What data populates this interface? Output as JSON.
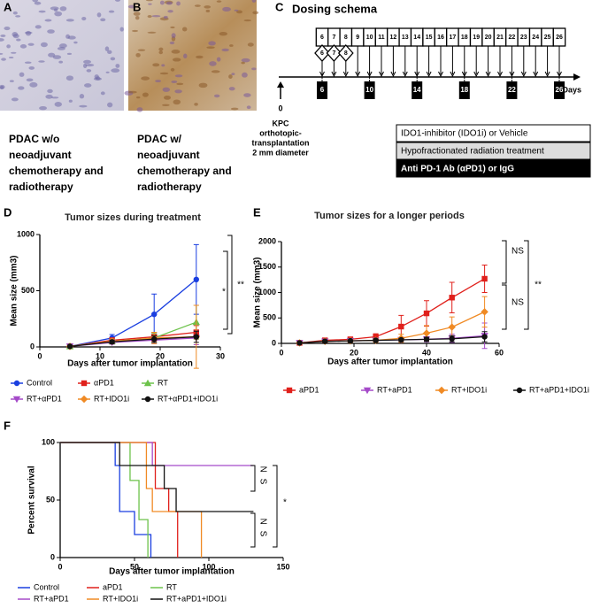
{
  "panels": {
    "a": {
      "letter": "A",
      "caption": [
        "PDAC w/o",
        "neoadjuvant",
        "chemotherapy  and",
        "radiotherapy"
      ]
    },
    "b": {
      "letter": "B",
      "caption": [
        "PDAC w/",
        "neoadjuvant",
        "chemotherapy and",
        "radiotherapy"
      ]
    },
    "c": {
      "letter": "C",
      "title": "Dosing schema",
      "days": [
        "6",
        "7",
        "8",
        "9",
        "10",
        "11",
        "12",
        "13",
        "14",
        "15",
        "16",
        "17",
        "18",
        "19",
        "20",
        "21",
        "22",
        "23",
        "24",
        "25",
        "26"
      ],
      "ido_days": [
        "6",
        "7",
        "8"
      ],
      "radiation_days": [
        "6",
        "10",
        "14",
        "18",
        "22",
        "26"
      ],
      "origin": "0",
      "axis_label": "Days",
      "transplant": [
        "KPC",
        "orthotopic-",
        "transplantation",
        "2 mm diameter"
      ],
      "legend": [
        "IDO1-inhibitor (IDO1i) or Vehicle",
        "Hypofractionated radiation treatment",
        "Anti PD-1 Ab (αPD1) or IgG"
      ]
    },
    "d": {
      "letter": "D"
    },
    "e": {
      "letter": "E"
    },
    "f": {
      "letter": "F"
    }
  },
  "chart_data": [
    {
      "type": "line",
      "title": "Tumor sizes during treatment",
      "x_label": "Days after tumor implantation",
      "y_label": "Mean size  (mm3)",
      "xlim": [
        0,
        30
      ],
      "xticks": [
        0,
        10,
        20,
        30
      ],
      "ylim": [
        0,
        1000
      ],
      "yticks": [
        0,
        500,
        1000
      ],
      "x": [
        5,
        12,
        19,
        26
      ],
      "series": [
        {
          "name": "Control",
          "color": "#1a3fe0",
          "marker": "circle",
          "values": [
            5,
            80,
            290,
            600
          ],
          "errors": [
            0,
            30,
            180,
            310
          ]
        },
        {
          "name": "αPD1",
          "color": "#e0201b",
          "marker": "square",
          "values": [
            5,
            60,
            90,
            130
          ],
          "errors": [
            0,
            20,
            40,
            60
          ]
        },
        {
          "name": "RT",
          "color": "#6cc24a",
          "marker": "triangle",
          "values": [
            5,
            50,
            80,
            220
          ],
          "errors": [
            0,
            20,
            40,
            150
          ]
        },
        {
          "name": "RT+αPD1",
          "color": "#a54ac9",
          "marker": "triangle-down",
          "values": [
            5,
            40,
            60,
            80
          ],
          "errors": [
            0,
            15,
            30,
            60
          ]
        },
        {
          "name": "RT+IDO1i",
          "color": "#f08a24",
          "marker": "diamond",
          "values": [
            5,
            50,
            80,
            90
          ],
          "errors": [
            0,
            20,
            50,
            280
          ]
        },
        {
          "name": "RT+αPD1+IDO1i",
          "color": "#111111",
          "marker": "circle",
          "values": [
            5,
            45,
            70,
            90
          ],
          "errors": [
            0,
            15,
            30,
            50
          ]
        }
      ],
      "annotations": [
        "*",
        "**"
      ]
    },
    {
      "type": "line",
      "title": "Tumor sizes for a longer periods",
      "x_label": "Days after tumor implantation",
      "y_label": "Mean size (mm3)",
      "xlim": [
        0,
        60
      ],
      "xticks": [
        0,
        20,
        40,
        60
      ],
      "ylim": [
        0,
        2000
      ],
      "yticks": [
        0,
        500,
        1000,
        1500,
        2000
      ],
      "x": [
        5,
        12,
        19,
        26,
        33,
        40,
        47,
        56
      ],
      "series": [
        {
          "name": "aPD1",
          "color": "#e0201b",
          "marker": "square",
          "values": [
            10,
            60,
            80,
            130,
            330,
            590,
            900,
            1270
          ],
          "errors": [
            10,
            30,
            40,
            60,
            220,
            250,
            300,
            270
          ]
        },
        {
          "name": "RT+aPD1",
          "color": "#a54ac9",
          "marker": "triangle-down",
          "values": [
            10,
            40,
            50,
            60,
            70,
            80,
            100,
            150
          ],
          "errors": [
            5,
            20,
            20,
            30,
            40,
            50,
            80,
            250
          ]
        },
        {
          "name": "RT+IDO1i",
          "color": "#f08a24",
          "marker": "diamond",
          "values": [
            10,
            40,
            50,
            60,
            100,
            200,
            320,
            620
          ],
          "errors": [
            5,
            20,
            30,
            40,
            80,
            150,
            200,
            300
          ]
        },
        {
          "name": "RT+aPD1+IDO1i",
          "color": "#111111",
          "marker": "circle",
          "values": [
            10,
            40,
            50,
            60,
            70,
            80,
            90,
            130
          ],
          "errors": [
            5,
            20,
            20,
            20,
            30,
            40,
            60,
            100
          ]
        }
      ],
      "annotations": [
        "NS",
        "NS",
        "**"
      ]
    },
    {
      "type": "step",
      "title": null,
      "x_label": "Days after tumor implantation",
      "y_label": "Percent survival",
      "xlim": [
        0,
        150
      ],
      "xticks": [
        0,
        50,
        100,
        150
      ],
      "ylim": [
        0,
        100
      ],
      "yticks": [
        0,
        50,
        100
      ],
      "series": [
        {
          "name": "Control",
          "color": "#1a3fe0",
          "x": [
            0,
            37,
            37,
            40,
            40,
            50,
            50,
            61,
            61
          ],
          "values": [
            100,
            100,
            80,
            80,
            40,
            40,
            20,
            20,
            0
          ]
        },
        {
          "name": "aPD1",
          "color": "#e0201b",
          "x": [
            0,
            64,
            64,
            73,
            73,
            79,
            79
          ],
          "values": [
            100,
            100,
            60,
            60,
            40,
            40,
            0
          ]
        },
        {
          "name": "RT",
          "color": "#6cc24a",
          "x": [
            0,
            47,
            47,
            53,
            53,
            59,
            59
          ],
          "values": [
            100,
            100,
            67,
            67,
            33,
            33,
            0
          ]
        },
        {
          "name": "RT+aPD1",
          "color": "#a54ac9",
          "x": [
            0,
            62,
            62,
            130
          ],
          "values": [
            100,
            100,
            80,
            80
          ]
        },
        {
          "name": "RT+IDO1i",
          "color": "#f08a24",
          "x": [
            0,
            58,
            58,
            62,
            62,
            95,
            95
          ],
          "values": [
            100,
            100,
            60,
            60,
            40,
            40,
            0
          ]
        },
        {
          "name": "RT+aPD1+IDO1i",
          "color": "#111111",
          "x": [
            0,
            40,
            40,
            70,
            70,
            78,
            78,
            130
          ],
          "values": [
            100,
            100,
            80,
            80,
            60,
            60,
            40,
            40
          ]
        }
      ],
      "annotations": [
        "N S",
        "N S",
        "*"
      ]
    }
  ]
}
